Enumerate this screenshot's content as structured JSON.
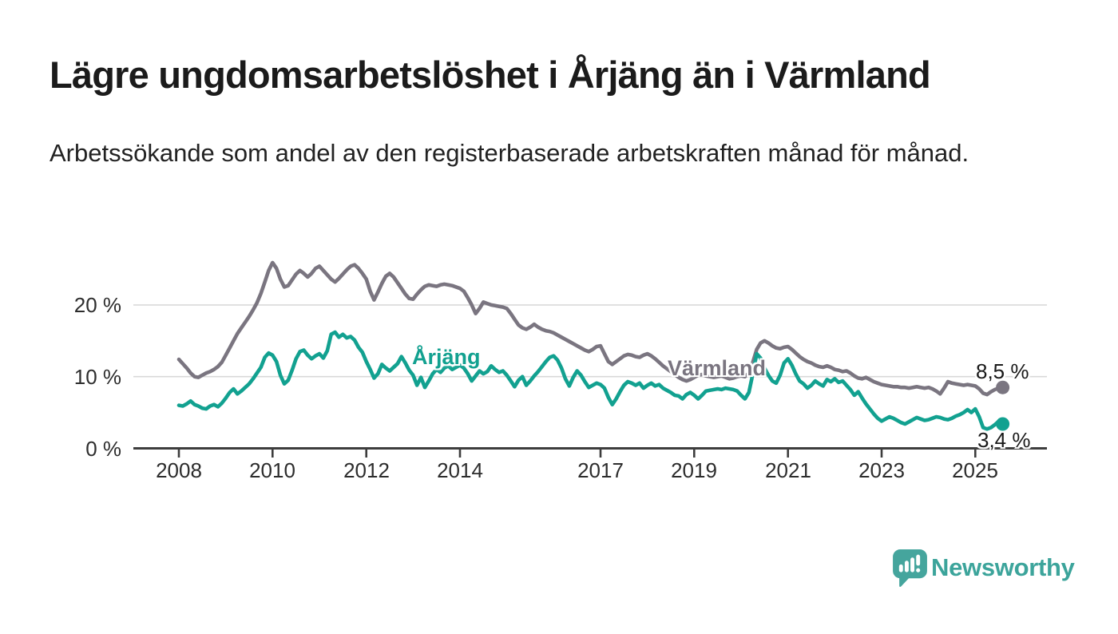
{
  "page": {
    "title": "Lägre ungdomsarbetslöshet i Årjäng än i Värmland",
    "subtitle": "Arbetssökande som andel av den registerbaserade arbetskraften månad för månad.",
    "background_color": "#ffffff"
  },
  "chart_data": {
    "type": "line",
    "title": "Lägre ungdomsarbetslöshet i Årjäng än i Värmland",
    "subtitle": "Arbetssökande som andel av den registerbaserade arbetskraften månad för månad.",
    "grid": "horizontal-only",
    "x_axis": {
      "unit": "monthly, decimal years",
      "start_year": 2008.0,
      "end_year": 2025.583,
      "tick_years": [
        2008,
        2010,
        2012,
        2014,
        2017,
        2019,
        2021,
        2023,
        2025
      ],
      "tick_labels": [
        "2008",
        "2010",
        "2012",
        "2014",
        "2017",
        "2019",
        "2021",
        "2023",
        "2025"
      ]
    },
    "y_axis": {
      "range": [
        0,
        28
      ],
      "grid_values": [
        10,
        20
      ],
      "ticks": [
        {
          "value": 0,
          "label": "0 %"
        },
        {
          "value": 10,
          "label": "10 %"
        },
        {
          "value": 20,
          "label": "20 %"
        }
      ]
    },
    "series": [
      {
        "name": "Värmland",
        "color": "#7a7580",
        "end_label": "8,5 %",
        "end_value": 8.5,
        "values": [
          12.4,
          11.8,
          11.2,
          10.5,
          10.0,
          9.9,
          10.2,
          10.5,
          10.7,
          11.0,
          11.4,
          12.0,
          13.0,
          14.0,
          15.0,
          16.0,
          16.8,
          17.6,
          18.4,
          19.3,
          20.3,
          21.6,
          23.2,
          24.8,
          25.9,
          25.1,
          23.6,
          22.5,
          22.7,
          23.5,
          24.3,
          24.8,
          24.4,
          23.9,
          24.4,
          25.1,
          25.4,
          24.8,
          24.2,
          23.6,
          23.2,
          23.7,
          24.3,
          24.9,
          25.4,
          25.6,
          25.1,
          24.4,
          23.6,
          21.9,
          20.7,
          21.8,
          23.0,
          24.0,
          24.4,
          23.9,
          23.1,
          22.3,
          21.5,
          20.9,
          20.8,
          21.5,
          22.1,
          22.6,
          22.8,
          22.7,
          22.6,
          22.8,
          22.9,
          22.8,
          22.7,
          22.5,
          22.3,
          21.9,
          21.0,
          20.0,
          18.8,
          19.5,
          20.4,
          20.2,
          20.0,
          19.9,
          19.8,
          19.7,
          19.5,
          18.8,
          18.0,
          17.2,
          16.8,
          16.6,
          16.9,
          17.3,
          16.9,
          16.6,
          16.4,
          16.3,
          16.1,
          15.8,
          15.5,
          15.2,
          14.9,
          14.6,
          14.3,
          14.0,
          13.7,
          13.5,
          13.8,
          14.2,
          14.3,
          13.2,
          12.1,
          11.7,
          12.1,
          12.5,
          12.9,
          13.1,
          13.0,
          12.8,
          12.7,
          13.0,
          13.2,
          12.9,
          12.5,
          12.0,
          11.5,
          11.1,
          10.7,
          10.3,
          9.9,
          9.6,
          9.4,
          9.6,
          9.9,
          10.2,
          10.3,
          10.1,
          10.0,
          9.9,
          10.0,
          10.1,
          9.9,
          9.7,
          9.8,
          10.0,
          10.1,
          10.0,
          10.5,
          12.0,
          13.8,
          14.7,
          15.0,
          14.7,
          14.3,
          14.0,
          13.9,
          14.1,
          14.2,
          13.8,
          13.3,
          12.8,
          12.4,
          12.1,
          11.9,
          11.6,
          11.4,
          11.3,
          11.5,
          11.3,
          11.0,
          10.9,
          10.7,
          10.8,
          10.5,
          10.1,
          9.8,
          9.7,
          9.9,
          9.6,
          9.3,
          9.1,
          8.9,
          8.8,
          8.7,
          8.6,
          8.6,
          8.5,
          8.5,
          8.4,
          8.5,
          8.6,
          8.5,
          8.4,
          8.5,
          8.3,
          8.0,
          7.6,
          8.4,
          9.3,
          9.1,
          9.0,
          8.9,
          8.8,
          8.9,
          8.8,
          8.7,
          8.3,
          7.7,
          7.5,
          7.9,
          8.2,
          8.4,
          8.5
        ]
      },
      {
        "name": "Årjäng",
        "color": "#12a190",
        "end_label": "3,4 %",
        "end_value": 3.4,
        "values": [
          6.0,
          5.9,
          6.2,
          6.6,
          6.1,
          5.9,
          5.6,
          5.5,
          5.9,
          6.1,
          5.8,
          6.3,
          7.0,
          7.8,
          8.3,
          7.6,
          8.0,
          8.5,
          9.0,
          9.7,
          10.5,
          11.3,
          12.7,
          13.3,
          13.0,
          12.1,
          10.2,
          9.0,
          9.5,
          10.9,
          12.5,
          13.5,
          13.7,
          13.0,
          12.5,
          12.9,
          13.2,
          12.6,
          13.6,
          15.9,
          16.2,
          15.5,
          15.9,
          15.4,
          15.6,
          15.1,
          14.1,
          13.4,
          12.1,
          11.0,
          9.8,
          10.4,
          11.7,
          11.2,
          10.8,
          11.3,
          11.8,
          12.8,
          11.9,
          10.9,
          10.2,
          8.8,
          9.9,
          8.5,
          9.4,
          10.4,
          11.0,
          10.6,
          11.2,
          11.5,
          11.0,
          11.3,
          11.6,
          11.2,
          10.4,
          9.4,
          10.1,
          10.8,
          10.4,
          10.7,
          11.5,
          11.0,
          10.6,
          10.8,
          10.2,
          9.4,
          8.6,
          9.5,
          10.0,
          8.8,
          9.4,
          10.1,
          10.7,
          11.4,
          12.1,
          12.7,
          12.9,
          12.3,
          11.2,
          9.7,
          8.7,
          9.9,
          10.8,
          10.2,
          9.3,
          8.5,
          8.8,
          9.1,
          8.9,
          8.4,
          7.1,
          6.1,
          6.9,
          7.9,
          8.8,
          9.3,
          9.1,
          8.8,
          9.1,
          8.4,
          8.8,
          9.1,
          8.7,
          8.9,
          8.4,
          8.1,
          7.8,
          7.4,
          7.3,
          6.9,
          7.5,
          7.8,
          7.4,
          6.9,
          7.4,
          8.0,
          8.1,
          8.2,
          8.3,
          8.2,
          8.4,
          8.3,
          8.2,
          8.0,
          7.4,
          6.9,
          7.8,
          10.4,
          13.2,
          12.6,
          11.2,
          10.2,
          9.4,
          9.1,
          10.2,
          11.9,
          12.5,
          11.6,
          10.4,
          9.4,
          9.0,
          8.4,
          8.8,
          9.4,
          9.0,
          8.7,
          9.6,
          9.3,
          9.7,
          9.2,
          9.4,
          8.8,
          8.2,
          7.4,
          7.9,
          7.0,
          6.2,
          5.5,
          4.8,
          4.2,
          3.8,
          4.1,
          4.4,
          4.2,
          3.9,
          3.6,
          3.4,
          3.7,
          4.0,
          4.3,
          4.1,
          3.9,
          4.0,
          4.2,
          4.4,
          4.3,
          4.1,
          4.0,
          4.2,
          4.5,
          4.7,
          5.0,
          5.4,
          5.0,
          5.5,
          4.4,
          2.9,
          2.7,
          2.9,
          3.3,
          3.8,
          3.4
        ]
      }
    ],
    "legend_position": "inline-labels-on-lines",
    "axis_color": "#3d3d3d",
    "gridline_color": "#d9d9d9"
  },
  "footer": {
    "brand": "Newsworthy",
    "brand_color": "#3ca49b",
    "icon_color": "#45a59d"
  }
}
